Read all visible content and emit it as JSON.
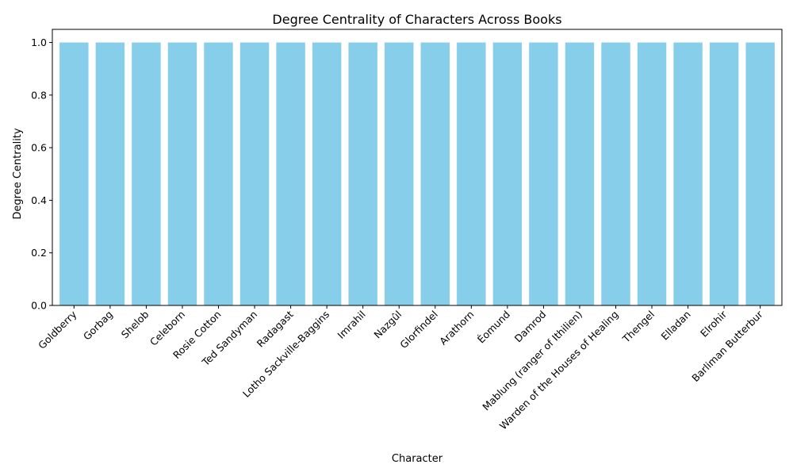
{
  "chart_data": {
    "type": "bar",
    "title": "Degree Centrality of Characters Across Books",
    "xlabel": "Character",
    "ylabel": "Degree Centrality",
    "categories": [
      "Goldberry",
      "Gorbag",
      "Shelob",
      "Celeborn",
      "Rosie Cotton",
      "Ted Sandyman",
      "Radagast",
      "Lotho Sackville-Baggins",
      "Imrahil",
      "Nazgûl",
      "Glorfindel",
      "Arathorn",
      "Éomund",
      "Damrod",
      "Mablung (ranger of Ithilien)",
      "Warden of the Houses of Healing",
      "Thengel",
      "Elladan",
      "Elrohir",
      "Barliman Butterbur"
    ],
    "values": [
      1,
      1,
      1,
      1,
      1,
      1,
      1,
      1,
      1,
      1,
      1,
      1,
      1,
      1,
      1,
      1,
      1,
      1,
      1,
      1
    ],
    "ylim": [
      0,
      1.05
    ],
    "yticks": [
      "0.0",
      "0.2",
      "0.4",
      "0.6",
      "0.8",
      "1.0"
    ],
    "grid": false,
    "colors": {
      "bar": "#87ceeb",
      "axis": "#000000"
    }
  }
}
